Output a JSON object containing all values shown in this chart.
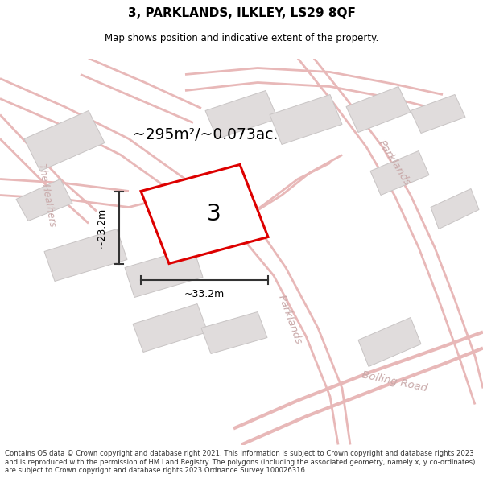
{
  "title": "3, PARKLANDS, ILKLEY, LS29 8QF",
  "subtitle": "Map shows position and indicative extent of the property.",
  "area_text": "~295m²/~0.073ac.",
  "dim_width": "~33.2m",
  "dim_height": "~23.2m",
  "property_number": "3",
  "footer_text": "Contains OS data © Crown copyright and database right 2021. This information is subject to Crown copyright and database rights 2023 and is reproduced with the permission of HM Land Registry. The polygons (including the associated geometry, namely x, y co-ordinates) are subject to Crown copyright and database rights 2023 Ordnance Survey 100026316.",
  "map_bg": "#f7f4f4",
  "road_color": "#e8b8b8",
  "road_stroke": "#e8b8b8",
  "building_color": "#e0dcdc",
  "building_edge": "#c8c4c4",
  "property_fill": "#ffffff",
  "property_outline_color": "#dd0000",
  "dim_line_color": "#333333",
  "road_label_color": "#c8a8a8",
  "title_color": "#000000",
  "footer_color": "#333333",
  "road_band_color": "#ece4e4"
}
